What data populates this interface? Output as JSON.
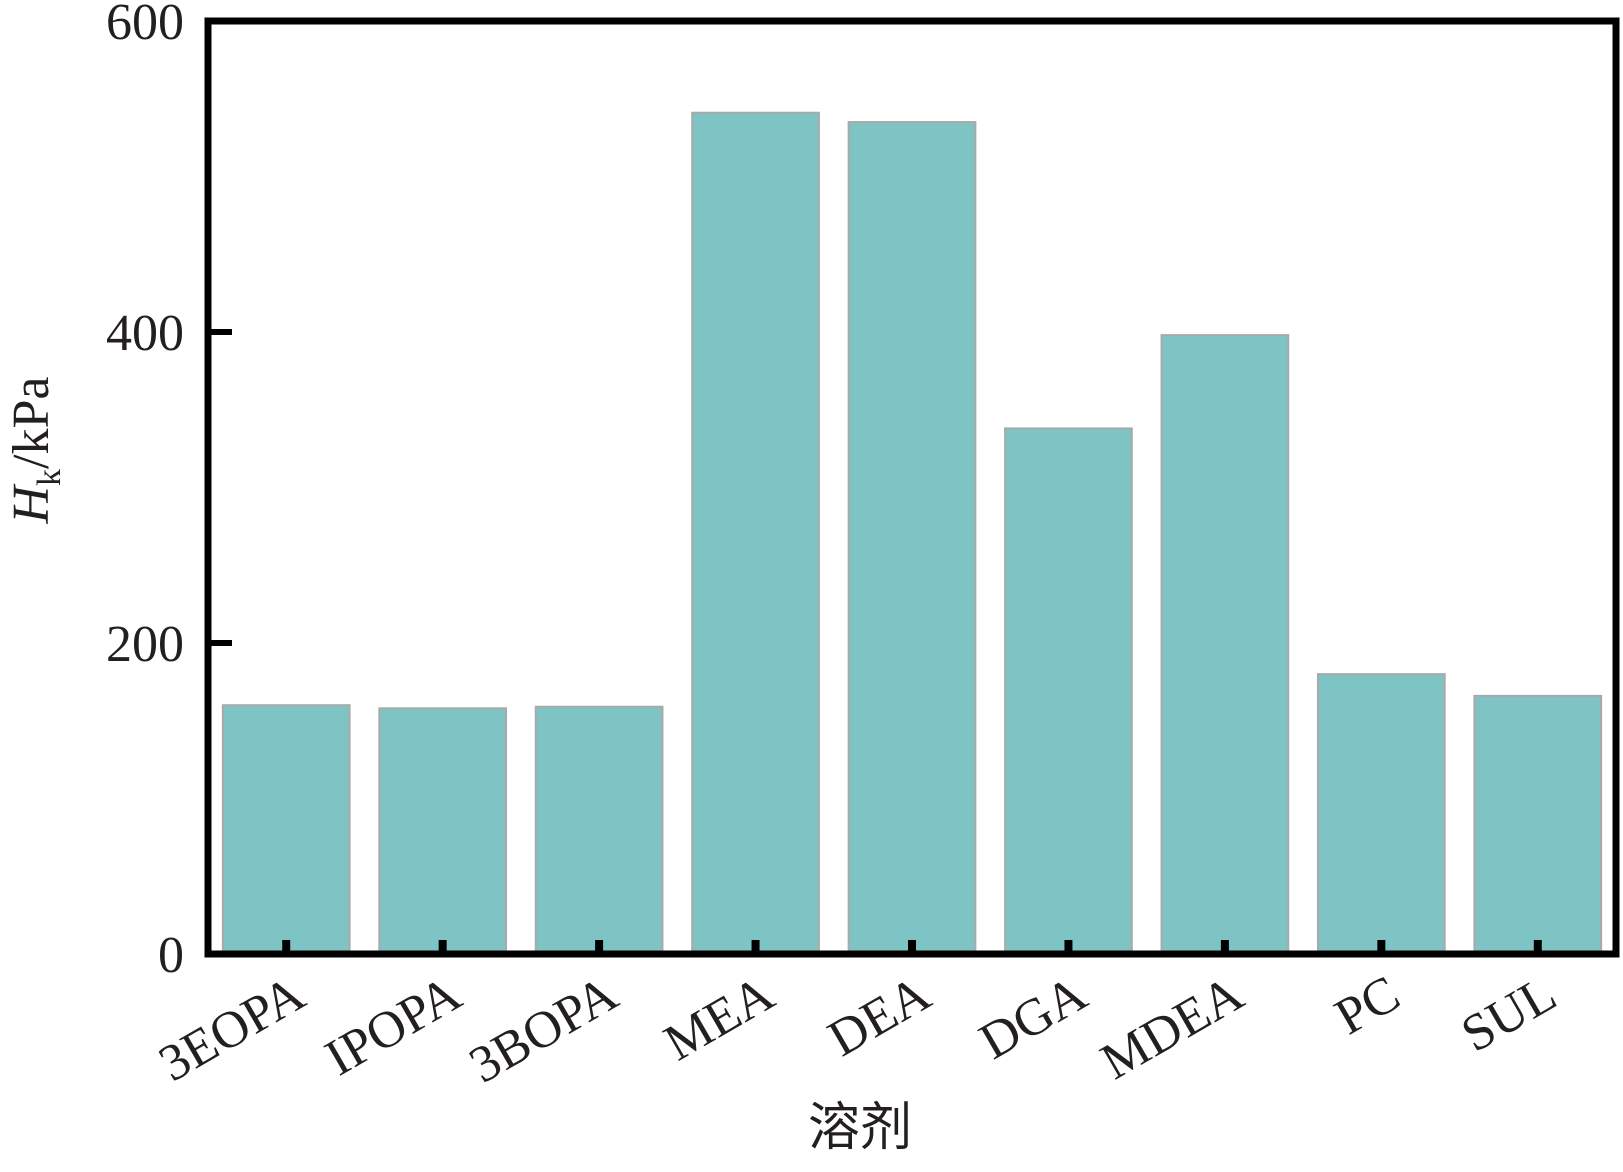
{
  "chart_data": {
    "type": "bar",
    "xlabel": "溶剂",
    "ylabel": {
      "symbol": "H",
      "subscript": "k",
      "unit": "/kPa"
    },
    "categories": [
      "3EOPA",
      "IPOPA",
      "3BOPA",
      "MEA",
      "DEA",
      "DGA",
      "MDEA",
      "PC",
      "SUL"
    ],
    "values": [
      160,
      158,
      159,
      541,
      535,
      338,
      398,
      180,
      166
    ],
    "color": "#7fc4c4",
    "ylim": [
      0,
      600
    ],
    "yticks": [
      0,
      200,
      400,
      600
    ]
  }
}
